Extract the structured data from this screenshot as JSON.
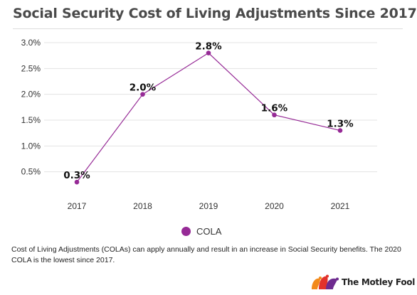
{
  "colors": {
    "accent": "#962a96",
    "grid": "#e3e3e3"
  },
  "title": "Social Security Cost of Living Adjustments Since 2017",
  "legend_label": "COLA",
  "footnote": "Cost of Living Adjustments (COLAs) can apply annually and result in an increase in Social Security benefits. The 2020 COLA is the lowest since 2017.",
  "brand": {
    "name": "The Motley Fool",
    "logo_icon": "jester-cap-icon"
  },
  "chart_data": {
    "type": "line",
    "categories": [
      "2017",
      "2018",
      "2019",
      "2020",
      "2021"
    ],
    "series": [
      {
        "name": "COLA",
        "values": [
          0.3,
          2.0,
          2.8,
          1.6,
          1.3
        ],
        "labels": [
          "0.3%",
          "2.0%",
          "2.8%",
          "1.6%",
          "1.3%"
        ]
      }
    ],
    "yticks": [
      0.5,
      1.0,
      1.5,
      2.0,
      2.5,
      3.0
    ],
    "ytick_labels": [
      "0.5%",
      "1.0%",
      "1.5%",
      "2.0%",
      "2.5%",
      "3.0%"
    ],
    "ylim": [
      0,
      3.0
    ],
    "grid": true,
    "legend_position": "bottom-center",
    "xlabel": "",
    "ylabel": ""
  }
}
